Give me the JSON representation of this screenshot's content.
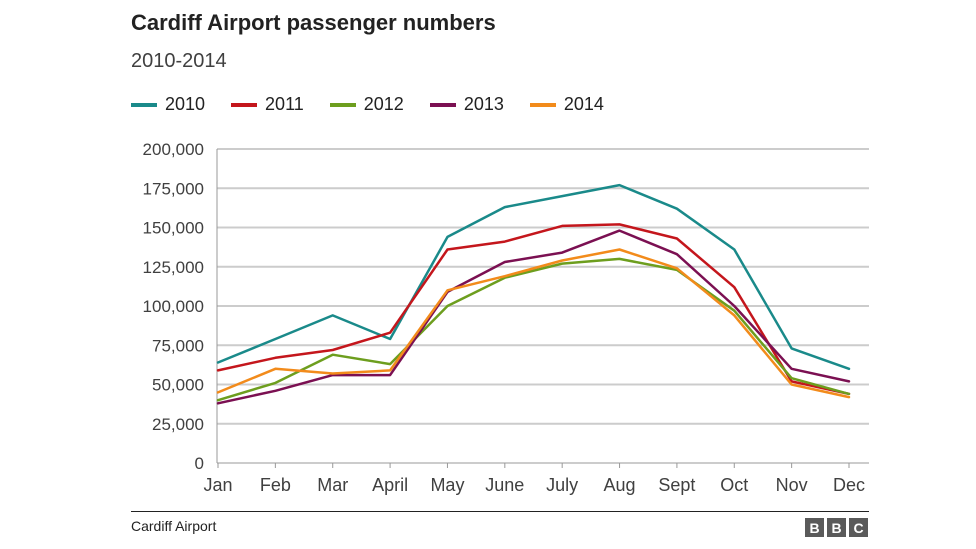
{
  "header": {
    "title": "Cardiff Airport passenger numbers",
    "subtitle": "2010-2014"
  },
  "footer": {
    "source": "Cardiff Airport",
    "logo_letters": [
      "B",
      "B",
      "C"
    ]
  },
  "chart_data": {
    "type": "line",
    "title": "Cardiff Airport passenger numbers",
    "subtitle": "2010-2014",
    "categories": [
      "Jan",
      "Feb",
      "Mar",
      "April",
      "May",
      "June",
      "July",
      "Aug",
      "Sept",
      "Oct",
      "Nov",
      "Dec"
    ],
    "y_ticks": [
      "0",
      "25,000",
      "50,000",
      "75,000",
      "100,000",
      "125,000",
      "150,000",
      "175,000",
      "200,000"
    ],
    "ylim": [
      0,
      200000
    ],
    "grid": true,
    "legend_position": "top-left",
    "series": [
      {
        "name": "2010",
        "color": "#1a8a8a",
        "values": [
          64000,
          79000,
          94000,
          79000,
          144000,
          163000,
          170000,
          177000,
          162000,
          136000,
          73000,
          60000
        ]
      },
      {
        "name": "2011",
        "color": "#c4161c",
        "values": [
          59000,
          67000,
          72000,
          83000,
          136000,
          141000,
          151000,
          152000,
          143000,
          112000,
          52000,
          44000
        ]
      },
      {
        "name": "2012",
        "color": "#6d9e1e",
        "values": [
          40000,
          51000,
          69000,
          63000,
          100000,
          118000,
          127000,
          130000,
          123000,
          97000,
          54000,
          44000
        ]
      },
      {
        "name": "2013",
        "color": "#7b1052",
        "values": [
          38000,
          46000,
          56000,
          56000,
          109000,
          128000,
          134000,
          148000,
          133000,
          100000,
          60000,
          52000
        ]
      },
      {
        "name": "2014",
        "color": "#f28b1b",
        "values": [
          45000,
          60000,
          57000,
          59000,
          110000,
          119000,
          129000,
          136000,
          124000,
          94000,
          50000,
          42000
        ]
      }
    ]
  }
}
